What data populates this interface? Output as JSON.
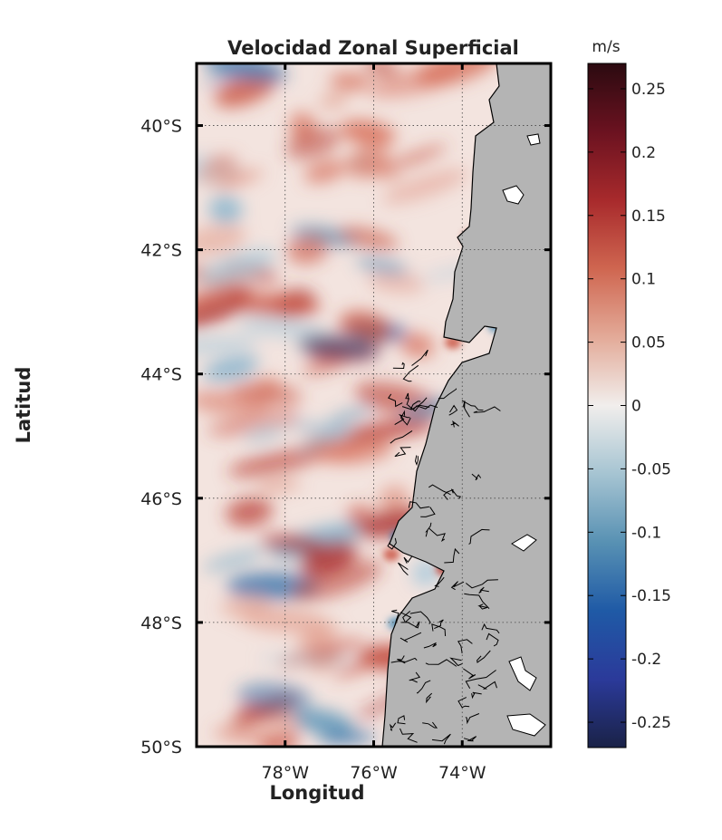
{
  "title": "Velocidad Zonal Superficial",
  "xlabel": "Longitud",
  "ylabel": "Latitud",
  "colorbar": {
    "unit": "m/s",
    "range": [
      -0.27,
      0.27
    ],
    "ticks": [
      "0.25",
      "0.2",
      "0.15",
      "0.1",
      "0.05",
      "0",
      "-0.05",
      "-0.1",
      "-0.15",
      "-0.2",
      "-0.25"
    ],
    "colormap": [
      "#2b0a10",
      "#6b1220",
      "#a82a2c",
      "#cf6650",
      "#e3aa98",
      "#f1eeec",
      "#a6c4d2",
      "#5891b3",
      "#1f5aa6",
      "#2b3a9a",
      "#1a2247"
    ]
  },
  "map": {
    "lon_range": [
      -80,
      -72
    ],
    "lat_range": [
      -50,
      -39
    ],
    "x_ticks": [
      {
        "lon": -78,
        "label": "78°W"
      },
      {
        "lon": -76,
        "label": "76°W"
      },
      {
        "lon": -74,
        "label": "74°W"
      }
    ],
    "y_ticks": [
      {
        "lat": -40,
        "label": "40°S"
      },
      {
        "lat": -42,
        "label": "42°S"
      },
      {
        "lat": -44,
        "label": "44°S"
      },
      {
        "lat": -46,
        "label": "46°S"
      },
      {
        "lat": -48,
        "label": "48°S"
      },
      {
        "lat": -50,
        "label": "50°S"
      }
    ],
    "land_color": "#b4b4b4",
    "ocean_base_color": "#f3e4df",
    "grid": true
  }
}
